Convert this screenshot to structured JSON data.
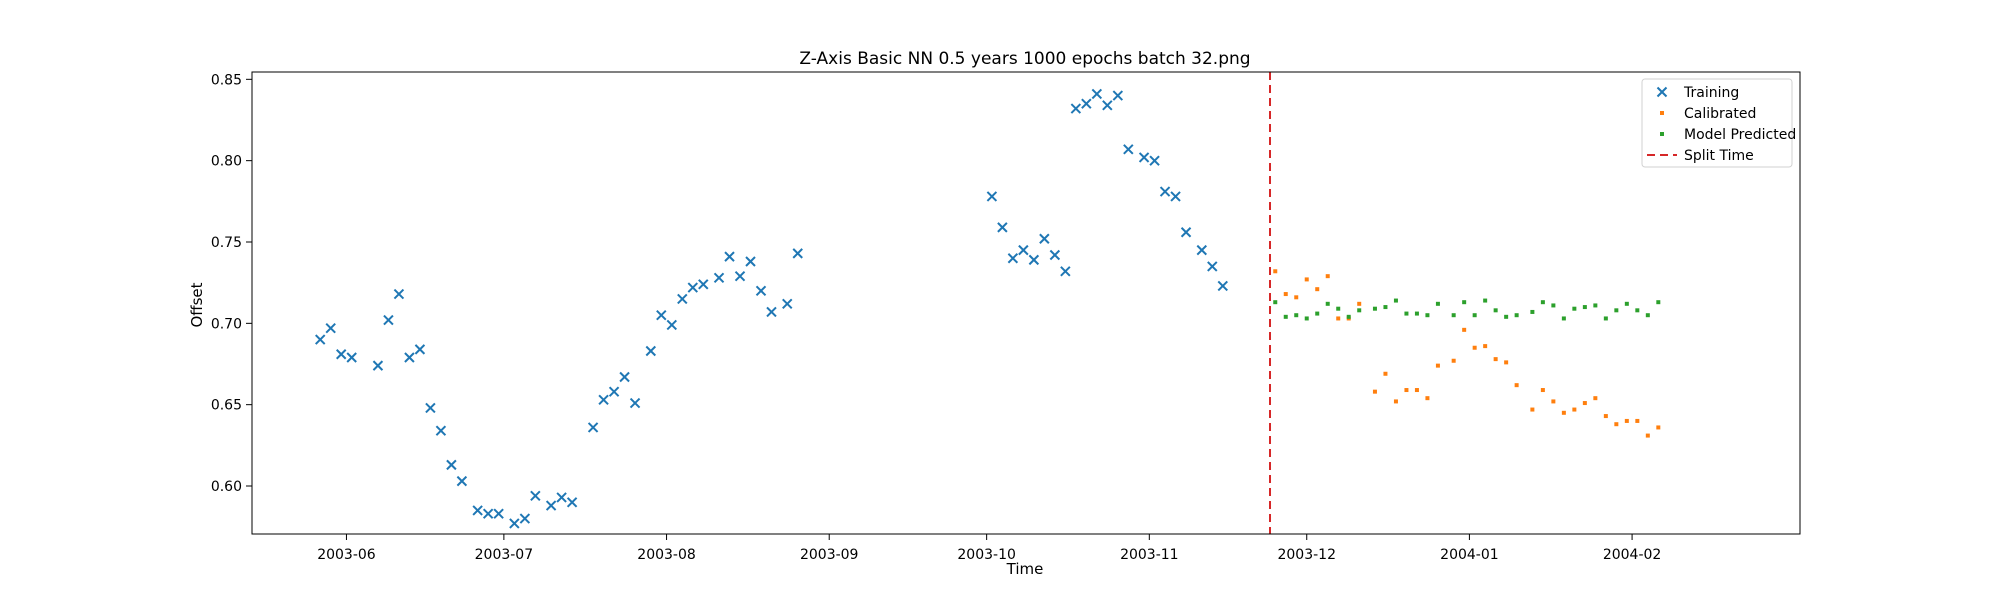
{
  "chart_data": {
    "type": "scatter",
    "title": "Z-Axis Basic NN 0.5 years 1000 epochs batch 32.png",
    "xlabel": "Time",
    "ylabel": "Offset",
    "xlim": [
      "2003-05-14",
      "2004-03-04"
    ],
    "ylim": [
      0.5705,
      0.8545
    ],
    "x_ticks": [
      "2003-06-01",
      "2003-07-01",
      "2003-08-01",
      "2003-09-01",
      "2003-10-01",
      "2003-11-01",
      "2003-12-01",
      "2004-01-01",
      "2004-02-01"
    ],
    "x_tick_labels": [
      "2003-06",
      "2003-07",
      "2003-08",
      "2003-09",
      "2003-10",
      "2003-11",
      "2003-12",
      "2004-01",
      "2004-02"
    ],
    "y_ticks": [
      0.6,
      0.65,
      0.7,
      0.75,
      0.8,
      0.85
    ],
    "y_tick_labels": [
      "0.60",
      "0.65",
      "0.70",
      "0.75",
      "0.80",
      "0.85"
    ],
    "grid": false,
    "legend_position": "top-right",
    "split_time": "2003-11-24",
    "series": [
      {
        "name": "Training",
        "marker": "x",
        "color": "#1f77b4",
        "points": [
          {
            "x": "2003-05-27",
            "y": 0.69
          },
          {
            "x": "2003-05-29",
            "y": 0.697
          },
          {
            "x": "2003-05-31",
            "y": 0.681
          },
          {
            "x": "2003-06-02",
            "y": 0.679
          },
          {
            "x": "2003-06-07",
            "y": 0.674
          },
          {
            "x": "2003-06-09",
            "y": 0.702
          },
          {
            "x": "2003-06-11",
            "y": 0.718
          },
          {
            "x": "2003-06-13",
            "y": 0.679
          },
          {
            "x": "2003-06-15",
            "y": 0.684
          },
          {
            "x": "2003-06-17",
            "y": 0.648
          },
          {
            "x": "2003-06-19",
            "y": 0.634
          },
          {
            "x": "2003-06-21",
            "y": 0.613
          },
          {
            "x": "2003-06-23",
            "y": 0.603
          },
          {
            "x": "2003-06-26",
            "y": 0.585
          },
          {
            "x": "2003-06-28",
            "y": 0.583
          },
          {
            "x": "2003-06-30",
            "y": 0.583
          },
          {
            "x": "2003-07-03",
            "y": 0.577
          },
          {
            "x": "2003-07-05",
            "y": 0.58
          },
          {
            "x": "2003-07-07",
            "y": 0.594
          },
          {
            "x": "2003-07-10",
            "y": 0.588
          },
          {
            "x": "2003-07-12",
            "y": 0.593
          },
          {
            "x": "2003-07-14",
            "y": 0.59
          },
          {
            "x": "2003-07-18",
            "y": 0.636
          },
          {
            "x": "2003-07-20",
            "y": 0.653
          },
          {
            "x": "2003-07-22",
            "y": 0.658
          },
          {
            "x": "2003-07-24",
            "y": 0.667
          },
          {
            "x": "2003-07-26",
            "y": 0.651
          },
          {
            "x": "2003-07-29",
            "y": 0.683
          },
          {
            "x": "2003-07-31",
            "y": 0.705
          },
          {
            "x": "2003-08-02",
            "y": 0.699
          },
          {
            "x": "2003-08-04",
            "y": 0.715
          },
          {
            "x": "2003-08-06",
            "y": 0.722
          },
          {
            "x": "2003-08-08",
            "y": 0.724
          },
          {
            "x": "2003-08-11",
            "y": 0.728
          },
          {
            "x": "2003-08-13",
            "y": 0.741
          },
          {
            "x": "2003-08-15",
            "y": 0.729
          },
          {
            "x": "2003-08-17",
            "y": 0.738
          },
          {
            "x": "2003-08-19",
            "y": 0.72
          },
          {
            "x": "2003-08-21",
            "y": 0.707
          },
          {
            "x": "2003-08-24",
            "y": 0.712
          },
          {
            "x": "2003-08-26",
            "y": 0.743
          },
          {
            "x": "2003-10-02",
            "y": 0.778
          },
          {
            "x": "2003-10-04",
            "y": 0.759
          },
          {
            "x": "2003-10-06",
            "y": 0.74
          },
          {
            "x": "2003-10-08",
            "y": 0.745
          },
          {
            "x": "2003-10-10",
            "y": 0.739
          },
          {
            "x": "2003-10-12",
            "y": 0.752
          },
          {
            "x": "2003-10-14",
            "y": 0.742
          },
          {
            "x": "2003-10-16",
            "y": 0.732
          },
          {
            "x": "2003-10-18",
            "y": 0.832
          },
          {
            "x": "2003-10-20",
            "y": 0.835
          },
          {
            "x": "2003-10-22",
            "y": 0.841
          },
          {
            "x": "2003-10-24",
            "y": 0.834
          },
          {
            "x": "2003-10-26",
            "y": 0.84
          },
          {
            "x": "2003-10-28",
            "y": 0.807
          },
          {
            "x": "2003-10-31",
            "y": 0.802
          },
          {
            "x": "2003-11-02",
            "y": 0.8
          },
          {
            "x": "2003-11-04",
            "y": 0.781
          },
          {
            "x": "2003-11-06",
            "y": 0.778
          },
          {
            "x": "2003-11-08",
            "y": 0.756
          },
          {
            "x": "2003-11-11",
            "y": 0.745
          },
          {
            "x": "2003-11-13",
            "y": 0.735
          },
          {
            "x": "2003-11-15",
            "y": 0.723
          }
        ]
      },
      {
        "name": "Calibrated",
        "marker": "dot",
        "color": "#ff7f0e",
        "points": [
          {
            "x": "2003-11-25",
            "y": 0.732
          },
          {
            "x": "2003-11-27",
            "y": 0.718
          },
          {
            "x": "2003-11-29",
            "y": 0.716
          },
          {
            "x": "2003-12-01",
            "y": 0.727
          },
          {
            "x": "2003-12-03",
            "y": 0.721
          },
          {
            "x": "2003-12-05",
            "y": 0.729
          },
          {
            "x": "2003-12-07",
            "y": 0.703
          },
          {
            "x": "2003-12-09",
            "y": 0.703
          },
          {
            "x": "2003-12-11",
            "y": 0.712
          },
          {
            "x": "2003-12-14",
            "y": 0.658
          },
          {
            "x": "2003-12-16",
            "y": 0.669
          },
          {
            "x": "2003-12-18",
            "y": 0.652
          },
          {
            "x": "2003-12-20",
            "y": 0.659
          },
          {
            "x": "2003-12-22",
            "y": 0.659
          },
          {
            "x": "2003-12-24",
            "y": 0.654
          },
          {
            "x": "2003-12-26",
            "y": 0.674
          },
          {
            "x": "2003-12-29",
            "y": 0.677
          },
          {
            "x": "2003-12-31",
            "y": 0.696
          },
          {
            "x": "2004-01-02",
            "y": 0.685
          },
          {
            "x": "2004-01-04",
            "y": 0.686
          },
          {
            "x": "2004-01-06",
            "y": 0.678
          },
          {
            "x": "2004-01-08",
            "y": 0.676
          },
          {
            "x": "2004-01-10",
            "y": 0.662
          },
          {
            "x": "2004-01-13",
            "y": 0.647
          },
          {
            "x": "2004-01-15",
            "y": 0.659
          },
          {
            "x": "2004-01-17",
            "y": 0.652
          },
          {
            "x": "2004-01-19",
            "y": 0.645
          },
          {
            "x": "2004-01-21",
            "y": 0.647
          },
          {
            "x": "2004-01-23",
            "y": 0.651
          },
          {
            "x": "2004-01-25",
            "y": 0.654
          },
          {
            "x": "2004-01-27",
            "y": 0.643
          },
          {
            "x": "2004-01-29",
            "y": 0.638
          },
          {
            "x": "2004-01-31",
            "y": 0.64
          },
          {
            "x": "2004-02-02",
            "y": 0.64
          },
          {
            "x": "2004-02-04",
            "y": 0.631
          },
          {
            "x": "2004-02-06",
            "y": 0.636
          }
        ]
      },
      {
        "name": "Model Predicted",
        "marker": "dot",
        "color": "#2ca02c",
        "points": [
          {
            "x": "2003-11-25",
            "y": 0.713
          },
          {
            "x": "2003-11-27",
            "y": 0.704
          },
          {
            "x": "2003-11-29",
            "y": 0.705
          },
          {
            "x": "2003-12-01",
            "y": 0.703
          },
          {
            "x": "2003-12-03",
            "y": 0.706
          },
          {
            "x": "2003-12-05",
            "y": 0.712
          },
          {
            "x": "2003-12-07",
            "y": 0.709
          },
          {
            "x": "2003-12-09",
            "y": 0.704
          },
          {
            "x": "2003-12-11",
            "y": 0.708
          },
          {
            "x": "2003-12-14",
            "y": 0.709
          },
          {
            "x": "2003-12-16",
            "y": 0.71
          },
          {
            "x": "2003-12-18",
            "y": 0.714
          },
          {
            "x": "2003-12-20",
            "y": 0.706
          },
          {
            "x": "2003-12-22",
            "y": 0.706
          },
          {
            "x": "2003-12-24",
            "y": 0.705
          },
          {
            "x": "2003-12-26",
            "y": 0.712
          },
          {
            "x": "2003-12-29",
            "y": 0.705
          },
          {
            "x": "2003-12-31",
            "y": 0.713
          },
          {
            "x": "2004-01-02",
            "y": 0.705
          },
          {
            "x": "2004-01-04",
            "y": 0.714
          },
          {
            "x": "2004-01-06",
            "y": 0.708
          },
          {
            "x": "2004-01-08",
            "y": 0.704
          },
          {
            "x": "2004-01-10",
            "y": 0.705
          },
          {
            "x": "2004-01-13",
            "y": 0.707
          },
          {
            "x": "2004-01-15",
            "y": 0.713
          },
          {
            "x": "2004-01-17",
            "y": 0.711
          },
          {
            "x": "2004-01-19",
            "y": 0.703
          },
          {
            "x": "2004-01-21",
            "y": 0.709
          },
          {
            "x": "2004-01-23",
            "y": 0.71
          },
          {
            "x": "2004-01-25",
            "y": 0.711
          },
          {
            "x": "2004-01-27",
            "y": 0.703
          },
          {
            "x": "2004-01-29",
            "y": 0.708
          },
          {
            "x": "2004-01-31",
            "y": 0.712
          },
          {
            "x": "2004-02-02",
            "y": 0.708
          },
          {
            "x": "2004-02-04",
            "y": 0.705
          },
          {
            "x": "2004-02-06",
            "y": 0.713
          }
        ]
      },
      {
        "name": "Split Time",
        "marker": "dashed-line",
        "color": "#d62728",
        "points": []
      }
    ]
  }
}
